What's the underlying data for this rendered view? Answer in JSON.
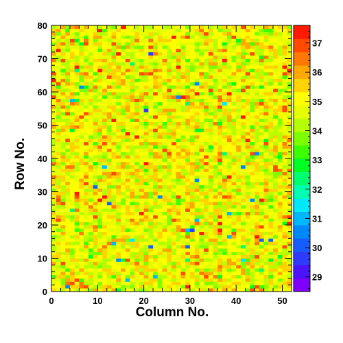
{
  "chart_data": {
    "type": "heatmap",
    "title": "",
    "xlabel": "Column No.",
    "ylabel": "Row No.",
    "xlim": [
      0,
      52
    ],
    "ylim": [
      0,
      80
    ],
    "x_ticks": [
      "0",
      "10",
      "20",
      "30",
      "40",
      "50"
    ],
    "y_ticks": [
      "0",
      "10",
      "20",
      "30",
      "40",
      "50",
      "60",
      "70",
      "80"
    ],
    "n_columns": 52,
    "n_rows": 80,
    "grid": false,
    "colorbar": {
      "position": "right",
      "range": [
        28.5,
        37.6
      ],
      "ticks": [
        "29",
        "30",
        "31",
        "32",
        "33",
        "34",
        "35",
        "36",
        "37"
      ],
      "colors": [
        "#7f00ff",
        "#4b14ff",
        "#2f3bff",
        "#165cff",
        "#0088ff",
        "#00b8ff",
        "#00e8ff",
        "#00ffb0",
        "#00ff70",
        "#00ff22",
        "#3cff00",
        "#7dff00",
        "#b5ff00",
        "#e6ff00",
        "#ffff00",
        "#ffd400",
        "#ffa800",
        "#ff7800",
        "#ff4a00",
        "#ff1a00"
      ]
    },
    "cell_value_distribution": {
      "mean": 34.9,
      "typical_min": 33.5,
      "typical_max": 36.5,
      "outlier_min": 29.5
    }
  }
}
